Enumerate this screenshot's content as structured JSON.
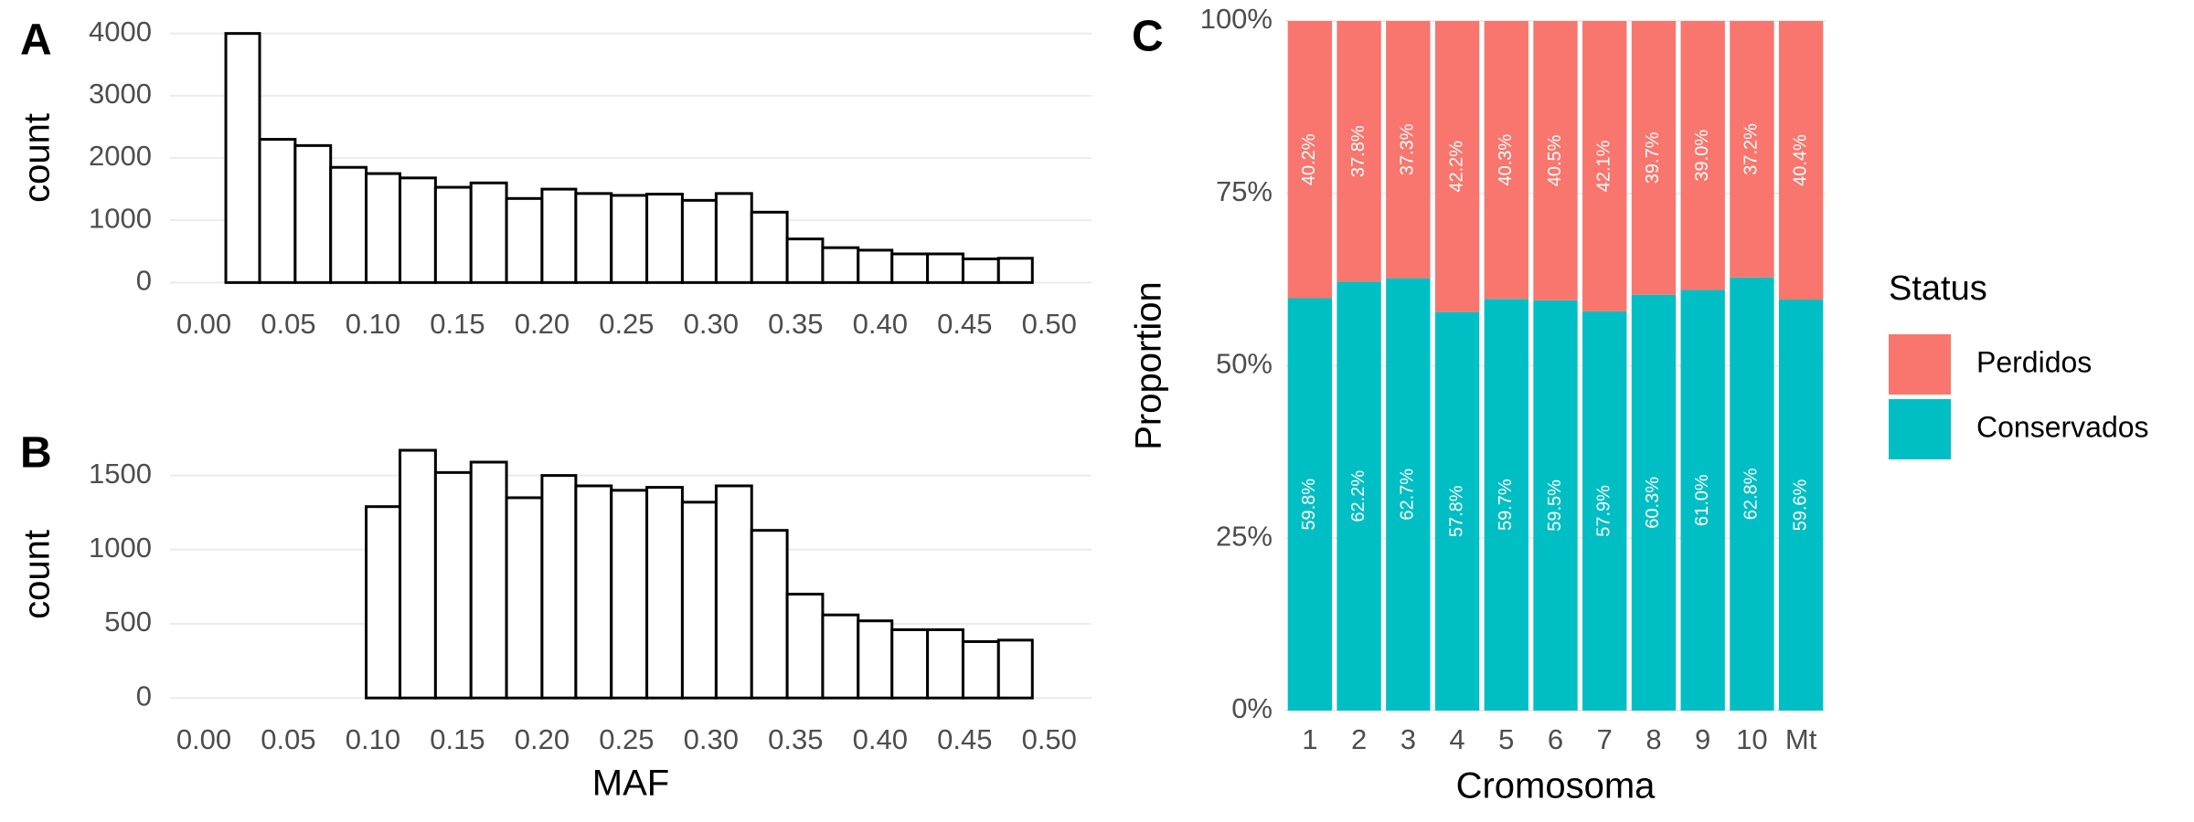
{
  "chart_data": [
    {
      "type": "histogram",
      "tag": "A",
      "ylabel": "count",
      "bins": [
        0.013,
        0.033,
        0.054,
        0.075,
        0.096,
        0.116,
        0.137,
        0.158,
        0.179,
        0.2,
        0.22,
        0.241,
        0.262,
        0.283,
        0.303,
        0.324,
        0.345,
        0.366,
        0.387,
        0.407,
        0.428,
        0.449,
        0.47,
        0.49
      ],
      "counts": [
        4000,
        2300,
        2200,
        1850,
        1750,
        1680,
        1530,
        1600,
        1350,
        1500,
        1430,
        1400,
        1420,
        1320,
        1430,
        1130,
        700,
        560,
        520,
        460,
        460,
        380,
        390
      ],
      "xlim": [
        -0.02,
        0.525
      ],
      "xticks": [
        {
          "value": 0,
          "label": "0.00"
        },
        {
          "value": 0.05,
          "label": "0.05"
        },
        {
          "value": 0.1,
          "label": "0.10"
        },
        {
          "value": 0.15,
          "label": "0.15"
        },
        {
          "value": 0.2,
          "label": "0.20"
        },
        {
          "value": 0.25,
          "label": "0.25"
        },
        {
          "value": 0.3,
          "label": "0.30"
        },
        {
          "value": 0.35,
          "label": "0.35"
        },
        {
          "value": 0.4,
          "label": "0.40"
        },
        {
          "value": 0.45,
          "label": "0.45"
        },
        {
          "value": 0.5,
          "label": "0.50"
        }
      ],
      "ylim": [
        -200,
        4200
      ],
      "yticks": [
        0,
        1000,
        2000,
        3000,
        4000
      ],
      "grid": true
    },
    {
      "type": "histogram",
      "tag": "B",
      "ylabel": "count",
      "xlabel": "MAF",
      "bins": [
        0.013,
        0.033,
        0.054,
        0.075,
        0.096,
        0.116,
        0.137,
        0.158,
        0.179,
        0.2,
        0.22,
        0.241,
        0.262,
        0.283,
        0.303,
        0.324,
        0.345,
        0.366,
        0.387,
        0.407,
        0.428,
        0.449,
        0.47,
        0.49
      ],
      "counts": [
        0,
        0,
        0,
        0,
        1290,
        1670,
        1520,
        1590,
        1350,
        1500,
        1430,
        1400,
        1420,
        1320,
        1430,
        1130,
        700,
        560,
        520,
        460,
        460,
        380,
        390
      ],
      "xlim": [
        -0.02,
        0.525
      ],
      "xticks": [
        {
          "value": 0,
          "label": "0.00"
        },
        {
          "value": 0.05,
          "label": "0.05"
        },
        {
          "value": 0.1,
          "label": "0.10"
        },
        {
          "value": 0.15,
          "label": "0.15"
        },
        {
          "value": 0.2,
          "label": "0.20"
        },
        {
          "value": 0.25,
          "label": "0.25"
        },
        {
          "value": 0.3,
          "label": "0.30"
        },
        {
          "value": 0.35,
          "label": "0.35"
        },
        {
          "value": 0.4,
          "label": "0.40"
        },
        {
          "value": 0.45,
          "label": "0.45"
        },
        {
          "value": 0.5,
          "label": "0.50"
        }
      ],
      "ylim": [
        -85,
        1750
      ],
      "yticks": [
        0,
        500,
        1000,
        1500
      ],
      "grid": true
    },
    {
      "type": "stacked_bar",
      "tag": "C",
      "xlabel": "Cromosoma",
      "ylabel": "Proportion",
      "legend_title": "Status",
      "categories": [
        "1",
        "2",
        "3",
        "4",
        "5",
        "6",
        "7",
        "8",
        "9",
        "10",
        "Mt"
      ],
      "series": [
        {
          "name": "Perdidos",
          "color": "#F8766D",
          "values": [
            40.2,
            37.8,
            37.3,
            42.2,
            40.3,
            40.5,
            42.1,
            39.7,
            39.0,
            37.2,
            40.4
          ],
          "value_labels": [
            "40.2%",
            "37.8%",
            "37.3%",
            "42.2%",
            "40.3%",
            "40.5%",
            "42.1%",
            "39.7%",
            "39.0%",
            "37.2%",
            "40.4%"
          ]
        },
        {
          "name": "Conservados",
          "color": "#00BFC4",
          "values": [
            59.8,
            62.2,
            62.7,
            57.8,
            59.7,
            59.5,
            57.9,
            60.3,
            61.0,
            62.8,
            59.6
          ],
          "value_labels": [
            "59.8%",
            "62.2%",
            "62.7%",
            "57.8%",
            "59.7%",
            "59.5%",
            "57.9%",
            "60.3%",
            "61.0%",
            "62.8%",
            "59.6%"
          ]
        }
      ],
      "ylim": [
        0,
        100
      ],
      "yticks": [
        {
          "value": 0,
          "label": "0%"
        },
        {
          "value": 25,
          "label": "25%"
        },
        {
          "value": 50,
          "label": "50%"
        },
        {
          "value": 75,
          "label": "75%"
        },
        {
          "value": 100,
          "label": "100%"
        }
      ],
      "grid": true,
      "legend": "right"
    }
  ]
}
